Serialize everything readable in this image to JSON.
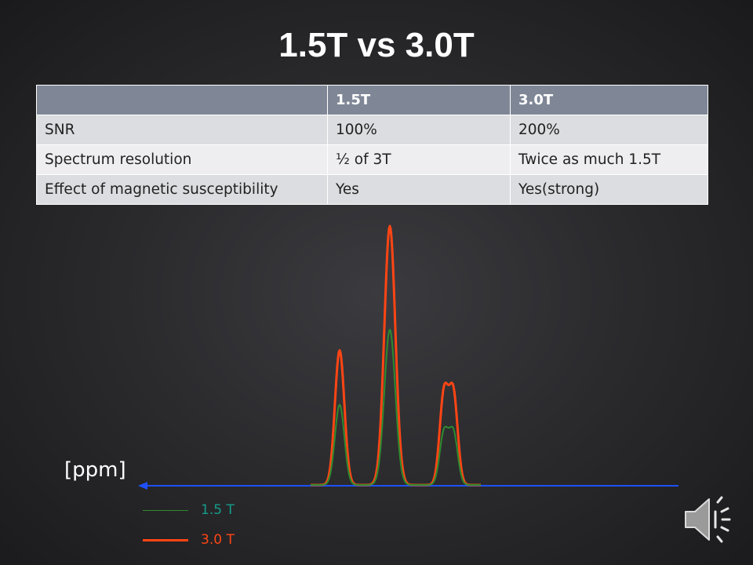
{
  "slide": {
    "title": "1.5T vs 3.0T"
  },
  "table": {
    "headers": [
      "",
      "1.5T",
      "3.0T"
    ],
    "rows": [
      [
        "SNR",
        "100%",
        "200%"
      ],
      [
        "Spectrum resolution",
        "½ of 3T",
        "Twice as much 1.5T"
      ],
      [
        "Effect of magnetic susceptibility",
        "Yes",
        "Yes(strong)"
      ]
    ]
  },
  "spectrum": {
    "axis_label": "[ppm]",
    "legend": [
      {
        "label": "1.5 T",
        "line_color": "#2e8b2e",
        "text_color": "#159c8a"
      },
      {
        "label": "3.0 T",
        "line_color": "#ff4514",
        "text_color": "#ff4514"
      }
    ],
    "axis_color": "#1f50ff",
    "axis_direction": "right-to-left arrow",
    "peaks_relative_height": {
      "3.0T": [
        0.52,
        1.0,
        0.35,
        0.35
      ],
      "1.5T": [
        0.31,
        0.6,
        0.2,
        0.2
      ]
    }
  },
  "controls": {
    "audio_icon": "speaker-icon"
  }
}
